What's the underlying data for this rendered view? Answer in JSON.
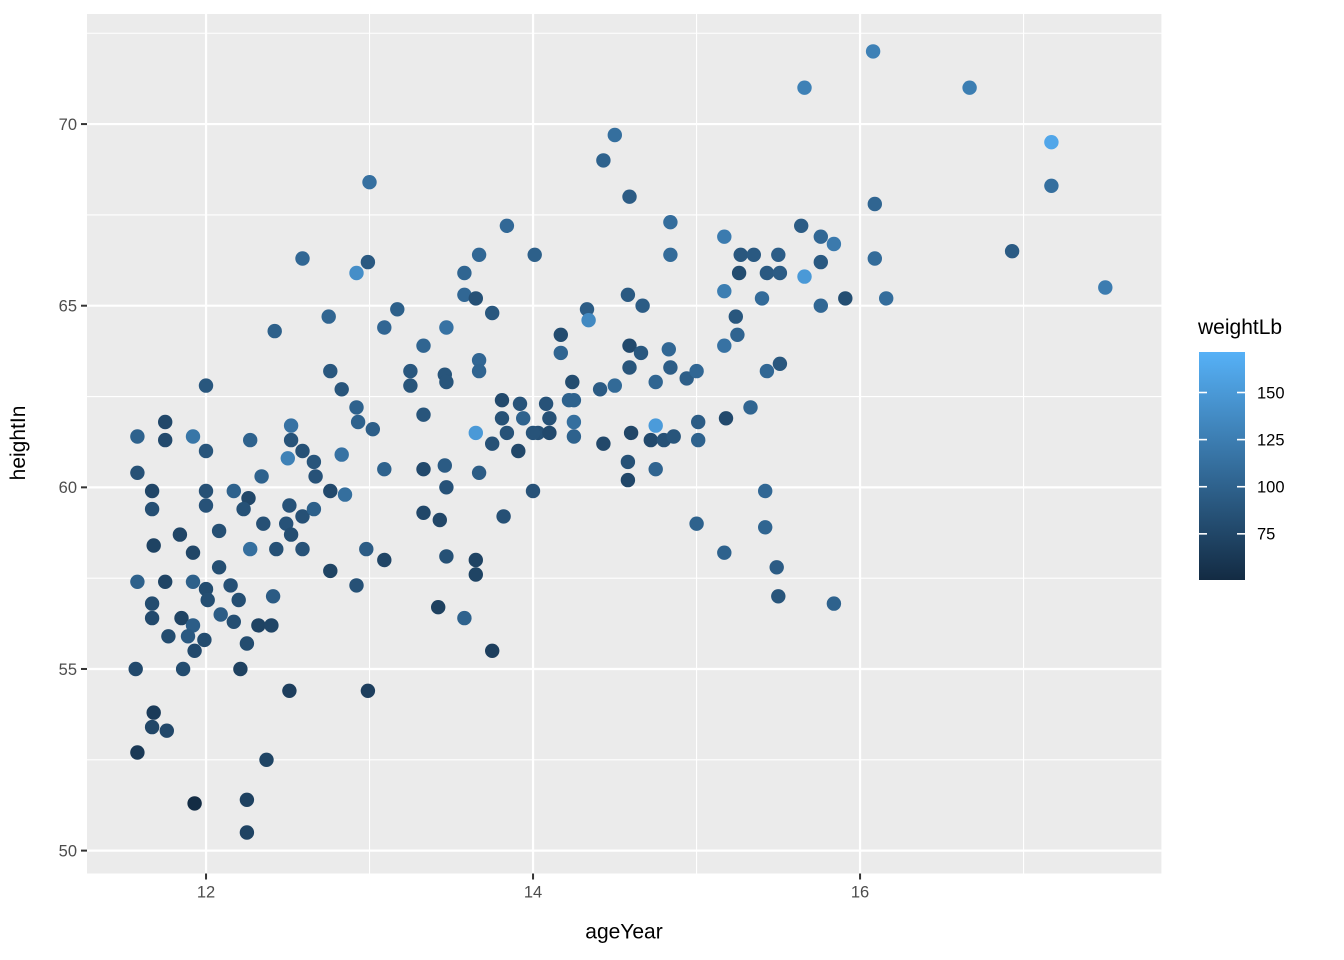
{
  "chart_data": {
    "type": "scatter",
    "title": "",
    "xlabel": "ageYear",
    "ylabel": "heightIn",
    "x_domain": [
      11.272,
      17.843
    ],
    "y_domain": [
      49.37,
      73.03
    ],
    "x_major_ticks": [
      12,
      14,
      16
    ],
    "x_minor_ticks": [
      13,
      15,
      17
    ],
    "y_major_ticks": [
      50,
      55,
      60,
      65,
      70
    ],
    "y_minor_ticks": [
      52.5,
      57.5,
      62.5,
      67.5,
      72.5
    ],
    "panel_bg": "#EBEBEB",
    "grid_color": "#FFFFFF",
    "tick_mark_color": "#333333",
    "tick_text_color": "#4D4D4D",
    "title_text_color": "#000000",
    "legend": {
      "title": "weightLb",
      "ticks": [
        150,
        125,
        100,
        75
      ],
      "domain": [
        50.5,
        171.5
      ],
      "color_low": "#132B43",
      "color_high": "#56B1F7"
    },
    "points": [
      [
        13.0,
        68.4,
        113
      ],
      [
        12.59,
        66.3,
        105
      ],
      [
        12.99,
        66.2,
        92
      ],
      [
        12.92,
        65.9,
        140
      ],
      [
        15.66,
        71,
        128
      ],
      [
        14.5,
        69.7,
        112
      ],
      [
        14.43,
        69,
        100
      ],
      [
        14.59,
        68,
        95
      ],
      [
        13.84,
        67.2,
        106
      ],
      [
        14.84,
        67.3,
        110
      ],
      [
        13.67,
        66.4,
        105
      ],
      [
        14.01,
        66.4,
        98
      ],
      [
        14.84,
        66.4,
        108
      ],
      [
        13.58,
        65.9,
        103
      ],
      [
        15.17,
        66.9,
        123
      ],
      [
        15.27,
        66.4,
        90
      ],
      [
        15.35,
        66.4,
        92
      ],
      [
        15.5,
        66.4,
        96
      ],
      [
        15.26,
        65.9,
        80
      ],
      [
        15.43,
        65.9,
        92
      ],
      [
        15.51,
        65.9,
        94
      ],
      [
        15.66,
        65.8,
        150
      ],
      [
        15.17,
        65.4,
        125
      ],
      [
        13.58,
        65.3,
        105
      ],
      [
        13.65,
        65.2,
        85
      ],
      [
        14.33,
        64.9,
        95
      ],
      [
        14.34,
        64.6,
        135
      ],
      [
        14.58,
        65.3,
        93
      ],
      [
        14.67,
        65,
        95
      ],
      [
        15.4,
        65.2,
        108
      ],
      [
        15.64,
        67.2,
        95
      ],
      [
        16.08,
        72,
        128
      ],
      [
        16.67,
        71,
        125
      ],
      [
        17.17,
        69.5,
        162
      ],
      [
        17.17,
        68.3,
        112
      ],
      [
        16.09,
        67.8,
        103
      ],
      [
        15.76,
        66.9,
        105
      ],
      [
        15.84,
        66.7,
        122
      ],
      [
        15.76,
        66.2,
        92
      ],
      [
        16.09,
        66.3,
        108
      ],
      [
        16.93,
        66.5,
        94
      ],
      [
        17.5,
        65.5,
        124
      ],
      [
        15.91,
        65.2,
        82
      ],
      [
        16.16,
        65.2,
        110
      ],
      [
        15.76,
        65,
        105
      ],
      [
        12.75,
        64.7,
        103
      ],
      [
        13.17,
        64.9,
        98
      ],
      [
        13.09,
        64.4,
        104
      ],
      [
        12.42,
        64.3,
        98
      ],
      [
        13.33,
        63.9,
        103
      ],
      [
        13.25,
        63.2,
        90
      ],
      [
        13.25,
        62.8,
        88
      ],
      [
        12.76,
        63.2,
        90
      ],
      [
        12.83,
        62.7,
        88
      ],
      [
        12,
        62.8,
        90
      ],
      [
        12.92,
        62.2,
        100
      ],
      [
        12.93,
        61.8,
        100
      ],
      [
        13.02,
        61.6,
        97
      ],
      [
        11.58,
        61.4,
        100
      ],
      [
        11.75,
        61.8,
        76
      ],
      [
        11.75,
        61.3,
        78
      ],
      [
        11.92,
        61.4,
        118
      ],
      [
        12,
        61,
        88
      ],
      [
        12.27,
        61.3,
        100
      ],
      [
        12.52,
        61.7,
        115
      ],
      [
        12.52,
        61.3,
        87
      ],
      [
        12.59,
        61,
        85
      ],
      [
        12.5,
        60.8,
        128
      ],
      [
        12.66,
        60.7,
        88
      ],
      [
        12.67,
        60.3,
        86
      ],
      [
        12.83,
        60.9,
        115
      ],
      [
        12.34,
        60.3,
        100
      ],
      [
        11.58,
        60.4,
        85
      ],
      [
        11.67,
        59.9,
        75
      ],
      [
        11.67,
        59.4,
        83
      ],
      [
        12,
        59.9,
        84
      ],
      [
        12,
        59.5,
        86
      ],
      [
        12.17,
        59.9,
        100
      ],
      [
        12.26,
        59.7,
        76
      ],
      [
        12.23,
        59.4,
        85
      ],
      [
        12.51,
        59.5,
        86
      ],
      [
        12.59,
        59.2,
        84
      ],
      [
        12.66,
        59.4,
        98
      ],
      [
        12.76,
        59.9,
        78
      ],
      [
        12.85,
        59.8,
        112
      ],
      [
        12.35,
        59,
        84
      ],
      [
        12.49,
        59,
        86
      ],
      [
        12.52,
        58.7,
        82
      ],
      [
        12.08,
        58.8,
        83
      ],
      [
        11.84,
        58.7,
        74
      ],
      [
        11.68,
        58.4,
        72
      ],
      [
        11.92,
        58.2,
        75
      ],
      [
        12.27,
        58.3,
        112
      ],
      [
        12.43,
        58.3,
        85
      ],
      [
        12.59,
        58.3,
        86
      ],
      [
        12.98,
        58.3,
        95
      ],
      [
        13.09,
        58,
        74
      ],
      [
        12.76,
        57.7,
        73
      ],
      [
        12.08,
        57.8,
        82
      ],
      [
        11.58,
        57.4,
        99
      ],
      [
        11.75,
        57.4,
        73
      ],
      [
        11.92,
        57.4,
        98
      ],
      [
        12.92,
        57.3,
        85
      ],
      [
        13.33,
        62,
        88
      ],
      [
        13.09,
        60.5,
        100
      ],
      [
        13.33,
        60.5,
        78
      ],
      [
        13.33,
        59.3,
        76
      ],
      [
        13.43,
        59.1,
        75
      ],
      [
        13.46,
        63.1,
        88
      ],
      [
        13.46,
        60.6,
        94
      ],
      [
        13.75,
        64.8,
        90
      ],
      [
        13.47,
        64.4,
        115
      ],
      [
        14.17,
        64.2,
        80
      ],
      [
        14.17,
        63.7,
        103
      ],
      [
        13.67,
        63.5,
        104
      ],
      [
        13.67,
        63.2,
        102
      ],
      [
        13.47,
        62.9,
        88
      ],
      [
        14.59,
        63.9,
        78
      ],
      [
        14.59,
        63.3,
        88
      ],
      [
        14.66,
        63.7,
        90
      ],
      [
        14.83,
        63.8,
        105
      ],
      [
        14.84,
        63.3,
        96
      ],
      [
        14.75,
        62.9,
        103
      ],
      [
        14.94,
        63,
        97
      ],
      [
        15,
        63.2,
        105
      ],
      [
        14.24,
        62.9,
        80
      ],
      [
        14.25,
        62.4,
        100
      ],
      [
        14.25,
        61.8,
        112
      ],
      [
        14.25,
        61.4,
        100
      ],
      [
        14.41,
        62.7,
        94
      ],
      [
        14.5,
        62.8,
        107
      ],
      [
        15.24,
        64.7,
        90
      ],
      [
        15.25,
        64.2,
        102
      ],
      [
        15.17,
        63.9,
        115
      ],
      [
        15.43,
        63.2,
        105
      ],
      [
        15.51,
        63.4,
        90
      ],
      [
        15.33,
        62.2,
        103
      ],
      [
        15.18,
        61.9,
        78
      ],
      [
        15.01,
        61.8,
        95
      ],
      [
        15.01,
        61.3,
        100
      ],
      [
        14.75,
        61.7,
        152
      ],
      [
        14.6,
        61.5,
        75
      ],
      [
        14.72,
        61.3,
        78
      ],
      [
        14.8,
        61.3,
        85
      ],
      [
        14.86,
        61.4,
        88
      ],
      [
        13.81,
        62.4,
        78
      ],
      [
        13.81,
        61.9,
        85
      ],
      [
        13.92,
        62.3,
        87
      ],
      [
        13.94,
        61.9,
        100
      ],
      [
        14.08,
        62.3,
        86
      ],
      [
        14.1,
        61.9,
        85
      ],
      [
        14.03,
        61.5,
        84
      ],
      [
        14.1,
        61.5,
        78
      ],
      [
        14.22,
        62.4,
        100
      ],
      [
        13.65,
        61.5,
        150
      ],
      [
        13.75,
        61.2,
        85
      ],
      [
        13.84,
        61.5,
        86
      ],
      [
        14,
        61.5,
        87
      ],
      [
        13.91,
        61,
        76
      ],
      [
        14.43,
        61.2,
        77
      ],
      [
        14.58,
        60.7,
        85
      ],
      [
        14.75,
        60.5,
        102
      ],
      [
        14.58,
        60.2,
        76
      ],
      [
        13.67,
        60.4,
        95
      ],
      [
        14,
        59.9,
        86
      ],
      [
        13.82,
        59.2,
        84
      ],
      [
        13.47,
        60,
        86
      ],
      [
        15,
        59,
        100
      ],
      [
        15.42,
        59.9,
        105
      ],
      [
        15.42,
        58.9,
        103
      ],
      [
        15.17,
        58.2,
        100
      ],
      [
        15.49,
        57.8,
        95
      ],
      [
        13.65,
        58,
        72
      ],
      [
        13.65,
        57.6,
        73
      ],
      [
        13.47,
        58.1,
        85
      ],
      [
        12,
        57.2,
        80
      ],
      [
        12.01,
        56.9,
        82
      ],
      [
        12.15,
        57.3,
        84
      ],
      [
        12.2,
        56.9,
        82
      ],
      [
        12.41,
        57,
        94
      ],
      [
        11.67,
        56.8,
        80
      ],
      [
        11.67,
        56.4,
        78
      ],
      [
        11.85,
        56.4,
        72
      ],
      [
        11.92,
        56.2,
        96
      ],
      [
        11.77,
        55.9,
        80
      ],
      [
        11.89,
        55.9,
        92
      ],
      [
        11.99,
        55.8,
        80
      ],
      [
        11.93,
        55.5,
        78
      ],
      [
        12.09,
        56.5,
        95
      ],
      [
        12.17,
        56.3,
        82
      ],
      [
        12.32,
        56.2,
        72
      ],
      [
        12.4,
        56.2,
        74
      ],
      [
        12.25,
        55.7,
        80
      ],
      [
        13.42,
        56.7,
        70
      ],
      [
        11.57,
        55,
        78
      ],
      [
        11.86,
        55,
        80
      ],
      [
        12.21,
        55,
        70
      ],
      [
        12.51,
        54.4,
        68
      ],
      [
        12.99,
        54.4,
        68
      ],
      [
        11.68,
        53.8,
        65
      ],
      [
        11.67,
        53.4,
        75
      ],
      [
        11.76,
        53.3,
        76
      ],
      [
        11.58,
        52.7,
        63
      ],
      [
        11.93,
        51.3,
        51
      ],
      [
        12.37,
        52.5,
        73
      ],
      [
        12.25,
        51.4,
        70
      ],
      [
        12.25,
        50.5,
        72
      ],
      [
        13.58,
        56.4,
        100
      ],
      [
        13.75,
        55.5,
        68
      ],
      [
        15.5,
        57,
        88
      ],
      [
        15.84,
        56.8,
        100
      ]
    ]
  }
}
